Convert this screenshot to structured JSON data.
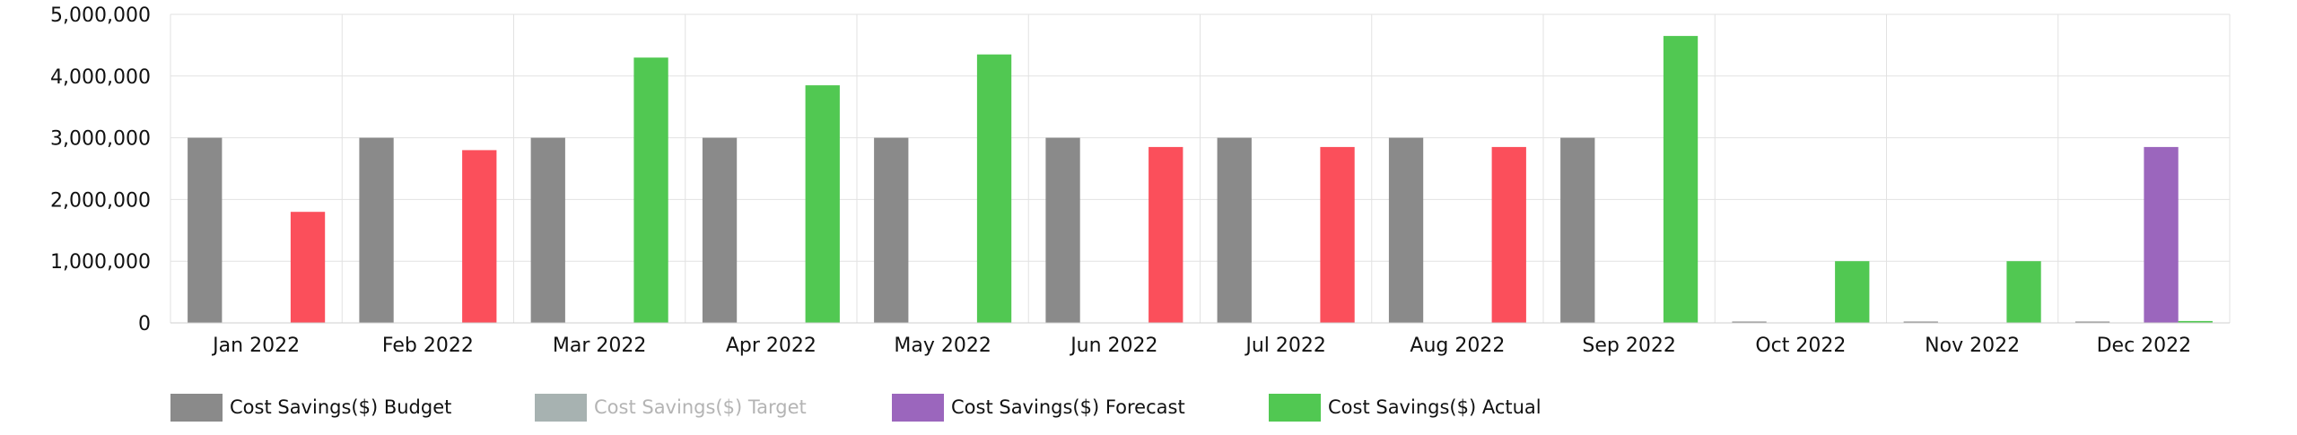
{
  "chart_data": {
    "type": "bar",
    "categories": [
      "Jan 2022",
      "Feb 2022",
      "Mar 2022",
      "Apr 2022",
      "May 2022",
      "Jun 2022",
      "Jul 2022",
      "Aug 2022",
      "Sep 2022",
      "Oct 2022",
      "Nov 2022",
      "Dec 2022"
    ],
    "ylim": [
      0,
      5000000
    ],
    "yticks": [
      "0",
      "1,000,000",
      "2,000,000",
      "3,000,000",
      "4,000,000",
      "5,000,000"
    ],
    "ytick_values": [
      0,
      1000000,
      2000000,
      3000000,
      4000000,
      5000000
    ],
    "grid": true,
    "legend_position": "bottom-left",
    "series": [
      {
        "name": "Cost Savings($) Budget",
        "color": "#8a8a8a",
        "visible": true,
        "values": [
          3000000,
          3000000,
          3000000,
          3000000,
          3000000,
          3000000,
          3000000,
          3000000,
          3000000,
          0,
          0,
          0
        ]
      },
      {
        "name": "Cost Savings($) Target",
        "color": "#a7b2b1",
        "visible": false,
        "values": [
          null,
          null,
          null,
          null,
          null,
          null,
          null,
          null,
          null,
          null,
          null,
          null
        ]
      },
      {
        "name": "Cost Savings($) Forecast",
        "color": "#9b66bd",
        "visible": true,
        "values": [
          null,
          null,
          null,
          null,
          null,
          null,
          null,
          null,
          null,
          null,
          null,
          2850000
        ]
      },
      {
        "name": "Cost Savings($) Actual",
        "color": "#51c852",
        "visible": true,
        "values": [
          1800000,
          2800000,
          4300000,
          3850000,
          4350000,
          2850000,
          2850000,
          2850000,
          4650000,
          1000000,
          1000000,
          30000
        ],
        "point_colors": [
          "#fb4f5b",
          "#fb4f5b",
          "#51c852",
          "#51c852",
          "#51c852",
          "#fb4f5b",
          "#fb4f5b",
          "#fb4f5b",
          "#51c852",
          "#51c852",
          "#51c852",
          "#51c852"
        ]
      }
    ]
  }
}
